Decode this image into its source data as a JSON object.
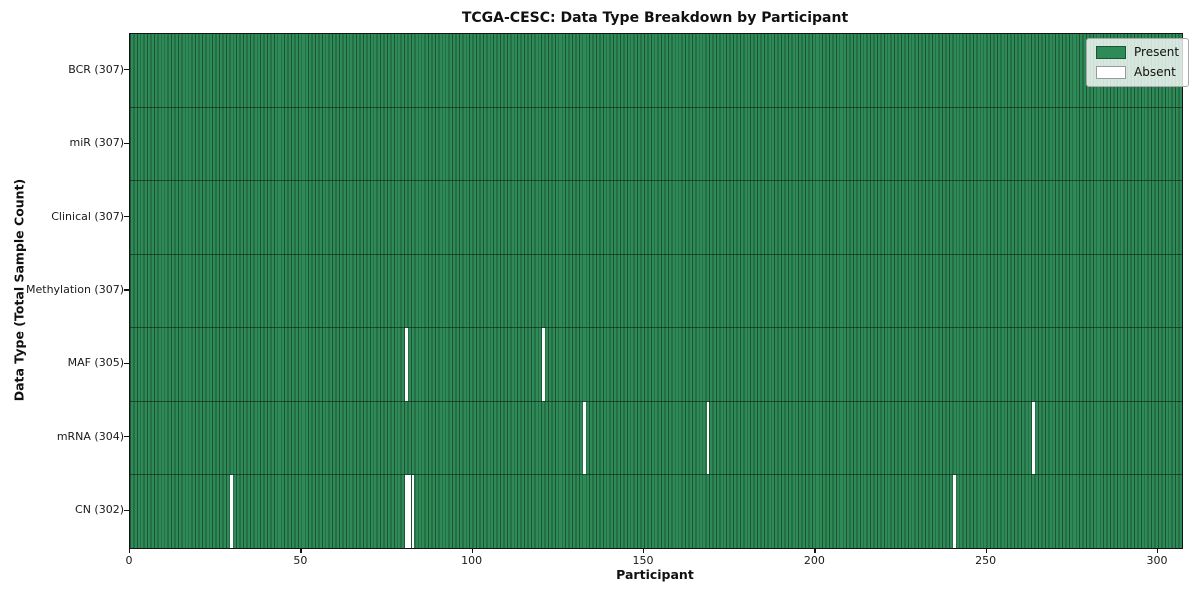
{
  "chart_data": {
    "type": "heatmap",
    "title": "TCGA-CESC: Data Type Breakdown by Participant",
    "xlabel": "Participant",
    "ylabel": "Data Type (Total Sample Count)",
    "n_participants": 307,
    "xlim": [
      0,
      307
    ],
    "x_ticks": [
      0,
      50,
      100,
      150,
      200,
      250,
      300
    ],
    "legend": {
      "position": "upper right",
      "present_label": "Present",
      "absent_label": "Absent"
    },
    "colors": {
      "present": "#2e8b57",
      "absent": "#ffffff",
      "cell_edge": "#1c4f33",
      "row_divider": "#16301f",
      "spine": "#141414"
    },
    "grid": "cell-edges-on",
    "rows": [
      {
        "label": "BCR (307)",
        "data_type": "BCR",
        "present_count": 307,
        "absent_participants": []
      },
      {
        "label": "miR (307)",
        "data_type": "miR",
        "present_count": 307,
        "absent_participants": []
      },
      {
        "label": "Clinical (307)",
        "data_type": "Clinical",
        "present_count": 307,
        "absent_participants": []
      },
      {
        "label": "Methylation (307)",
        "data_type": "Methylation",
        "present_count": 307,
        "absent_participants": []
      },
      {
        "label": "MAF (305)",
        "data_type": "MAF",
        "present_count": 305,
        "absent_participants": [
          80,
          120
        ]
      },
      {
        "label": "mRNA (304)",
        "data_type": "mRNA",
        "present_count": 304,
        "absent_participants": [
          132,
          168,
          263
        ]
      },
      {
        "label": "CN (302)",
        "data_type": "CN",
        "present_count": 302,
        "absent_participants": [
          29,
          80,
          81,
          82,
          240
        ]
      }
    ]
  }
}
